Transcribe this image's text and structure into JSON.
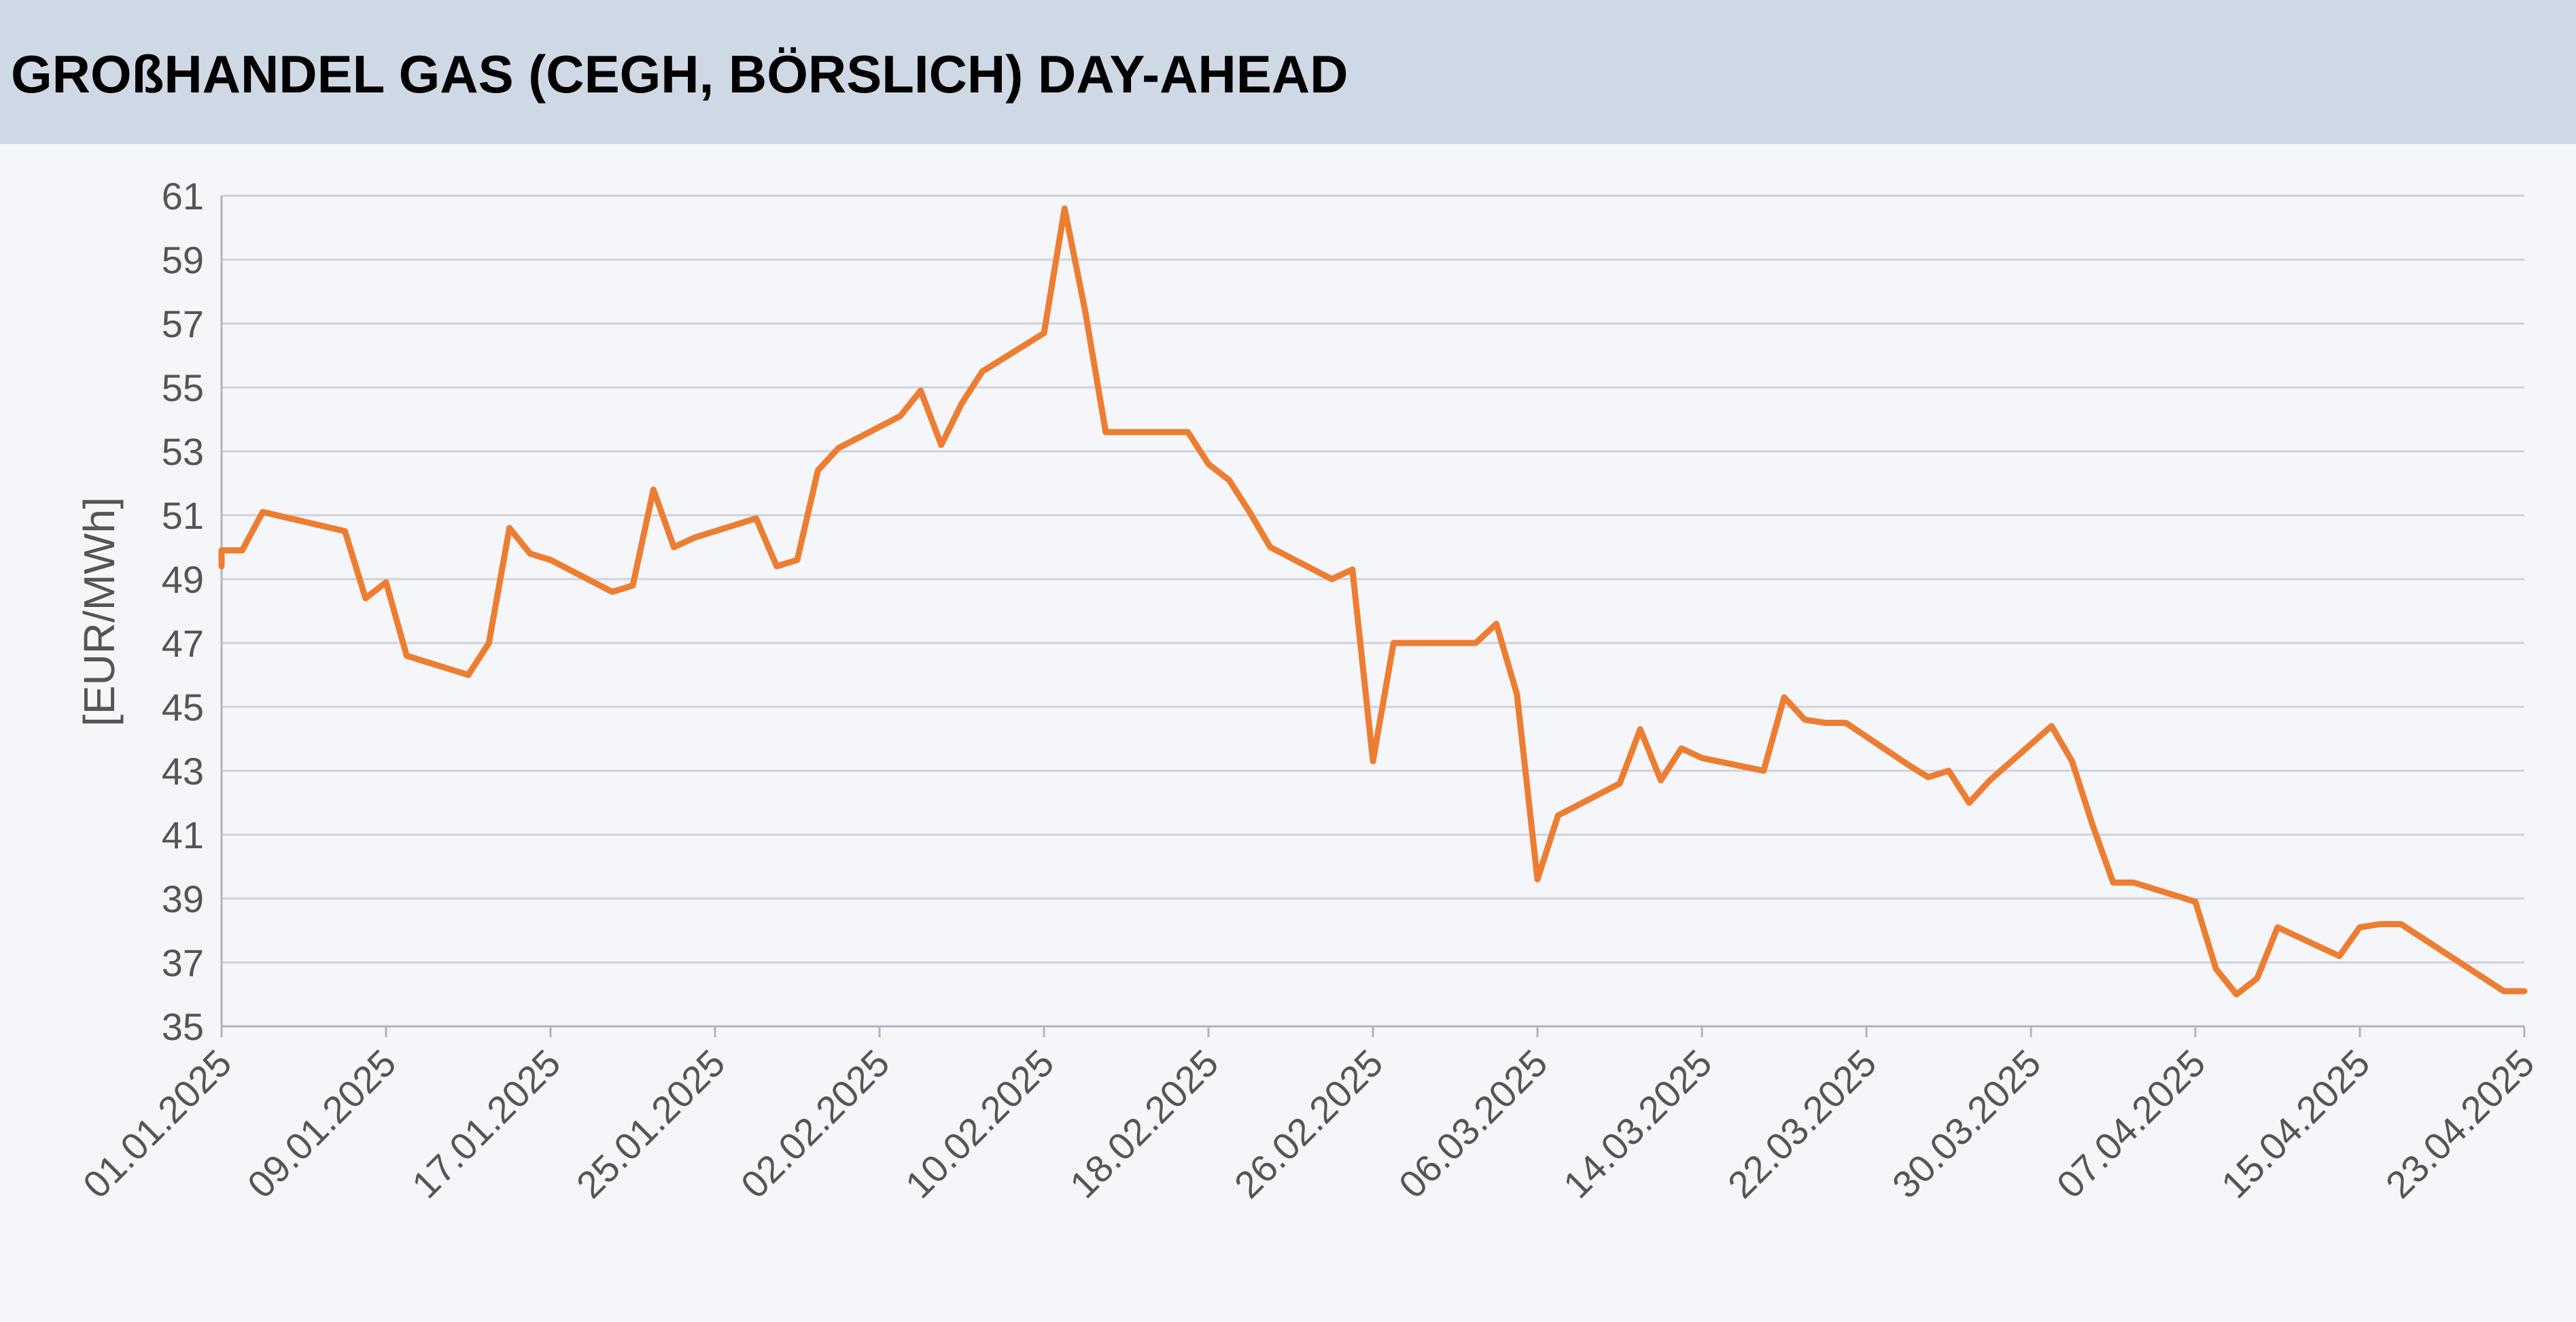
{
  "header": {
    "title": "GROßHANDEL GAS (CEGH, BÖRSLICH) DAY-AHEAD"
  },
  "colors": {
    "line": "#ed7d31",
    "grid": "#cfd2d8",
    "axis": "#555555",
    "header_bg": "#cfd9e5",
    "plot_bg": "#f4f6fa"
  },
  "chart_data": {
    "type": "line",
    "title": "GROßHANDEL GAS (CEGH, BÖRSLICH) DAY-AHEAD",
    "xlabel": "",
    "ylabel": "[EUR/MWh]",
    "ylim": [
      35,
      61
    ],
    "yticks": [
      35,
      37,
      39,
      41,
      43,
      45,
      47,
      49,
      51,
      53,
      55,
      57,
      59,
      61
    ],
    "xlim": [
      "2025-01-01",
      "2025-04-23"
    ],
    "xtick_labels": [
      "01.01.2025",
      "09.01.2025",
      "17.01.2025",
      "25.01.2025",
      "02.02.2025",
      "10.02.2025",
      "18.02.2025",
      "26.02.2025",
      "06.03.2025",
      "14.03.2025",
      "22.03.2025",
      "30.03.2025",
      "07.04.2025",
      "15.04.2025",
      "23.04.2025"
    ],
    "grid": "horizontal",
    "legend": "none",
    "series": [
      {
        "x": [
          "2025-01-01",
          "2025-01-01",
          "2025-01-02",
          "2025-01-03",
          "2025-01-03",
          "2025-01-07",
          "2025-01-08",
          "2025-01-09",
          "2025-01-09",
          "2025-01-10",
          "2025-01-13",
          "2025-01-14",
          "2025-01-15",
          "2025-01-16",
          "2025-01-17",
          "2025-01-20",
          "2025-01-21",
          "2025-01-22",
          "2025-01-23",
          "2025-01-24",
          "2025-01-27",
          "2025-01-28",
          "2025-01-29",
          "2025-01-30",
          "2025-01-31",
          "2025-02-03",
          "2025-02-04",
          "2025-02-05",
          "2025-02-06",
          "2025-02-07",
          "2025-02-10",
          "2025-02-11",
          "2025-02-11",
          "2025-02-12",
          "2025-02-13",
          "2025-02-14",
          "2025-02-17",
          "2025-02-18",
          "2025-02-19",
          "2025-02-20",
          "2025-02-21",
          "2025-02-24",
          "2025-02-25",
          "2025-02-26",
          "2025-02-27",
          "2025-03-02",
          "2025-03-03",
          "2025-03-04",
          "2025-03-05",
          "2025-03-06",
          "2025-03-07",
          "2025-03-10",
          "2025-03-11",
          "2025-03-12",
          "2025-03-13",
          "2025-03-14",
          "2025-03-17",
          "2025-03-18",
          "2025-03-19",
          "2025-03-20",
          "2025-03-21",
          "2025-03-24",
          "2025-03-25",
          "2025-03-26",
          "2025-03-27",
          "2025-03-28",
          "2025-03-31",
          "2025-04-01",
          "2025-04-02",
          "2025-04-03",
          "2025-04-04",
          "2025-04-07",
          "2025-04-08",
          "2025-04-09",
          "2025-04-10",
          "2025-04-11",
          "2025-04-14",
          "2025-04-15",
          "2025-04-16",
          "2025-04-17",
          "2025-04-22",
          "2025-04-23"
        ],
        "y": [
          49.4,
          49.9,
          49.9,
          51.1,
          51.1,
          50.5,
          48.4,
          48.9,
          48.9,
          46.6,
          46.0,
          47.0,
          50.6,
          49.8,
          49.6,
          48.6,
          48.8,
          51.8,
          50.0,
          50.3,
          50.9,
          49.4,
          49.6,
          52.4,
          53.1,
          54.1,
          54.9,
          53.2,
          54.5,
          55.5,
          56.7,
          60.6,
          60.6,
          57.4,
          53.6,
          53.6,
          53.6,
          52.6,
          52.1,
          51.1,
          50.0,
          49.0,
          49.3,
          43.3,
          47.0,
          47.0,
          47.0,
          47.6,
          45.4,
          39.6,
          41.6,
          42.6,
          44.3,
          42.7,
          43.7,
          43.4,
          43.0,
          45.3,
          44.6,
          44.5,
          44.5,
          43.2,
          42.8,
          43.0,
          42.0,
          42.7,
          44.4,
          43.3,
          41.3,
          39.5,
          39.5,
          38.9,
          36.8,
          36.0,
          36.5,
          38.1,
          37.2,
          38.1,
          38.2,
          38.2,
          36.1,
          36.1
        ]
      }
    ]
  }
}
